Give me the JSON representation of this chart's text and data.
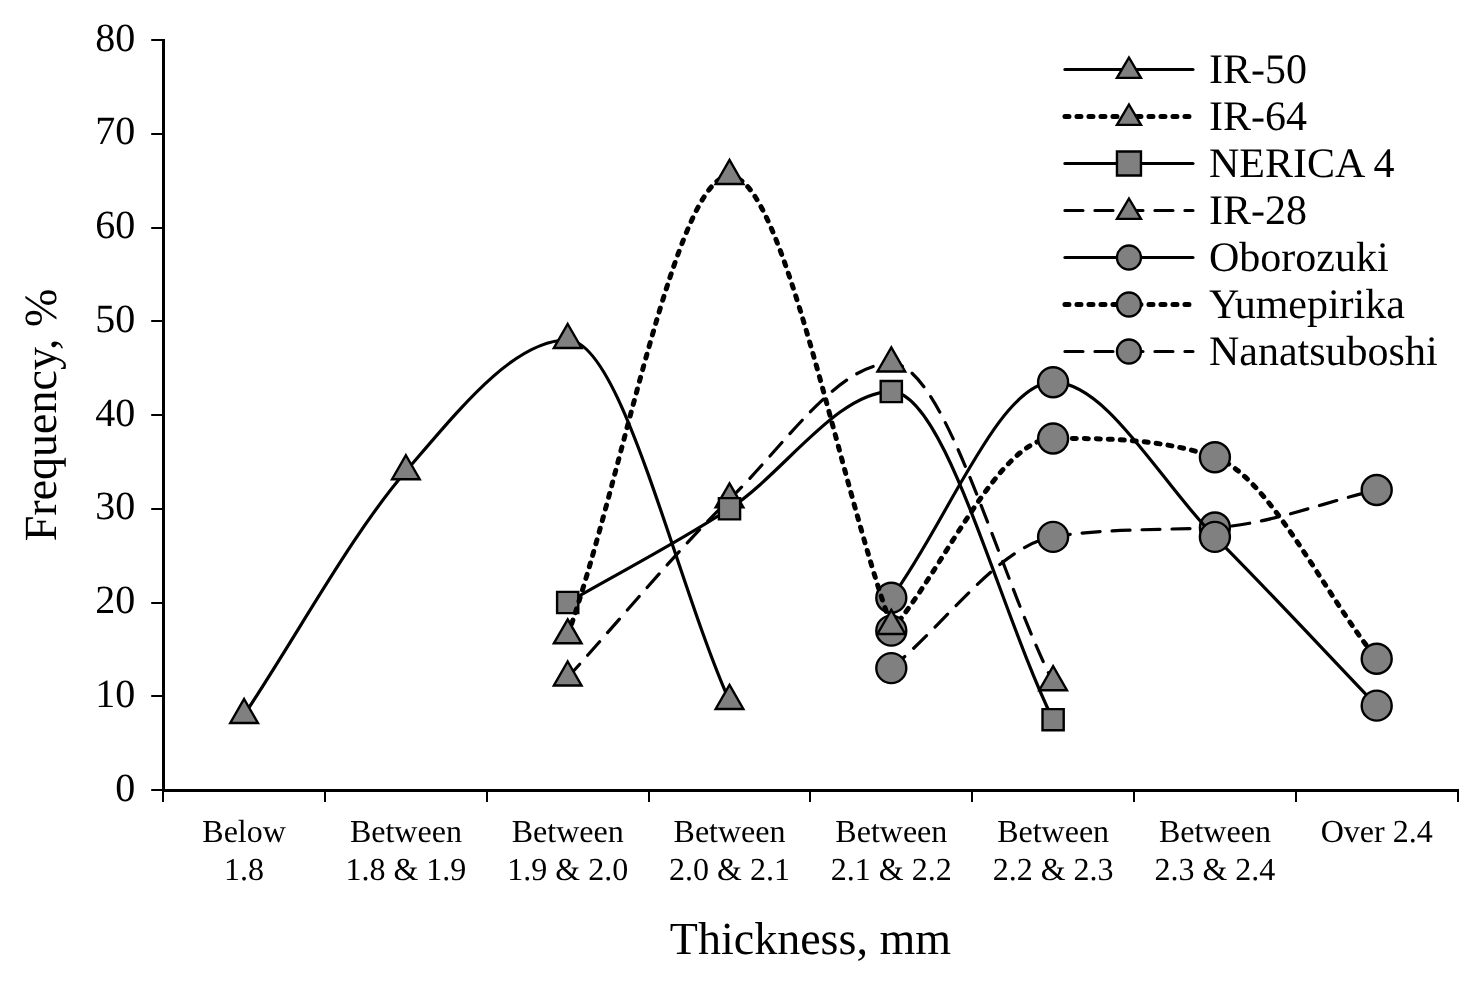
{
  "chart_data": {
    "type": "line",
    "xlabel": "Thickness, mm",
    "ylabel": "Frequency, %",
    "categories": [
      "Below\n1.8",
      "Between\n1.8 & 1.9",
      "Between\n1.9 & 2.0",
      "Between\n2.0 & 2.1",
      "Between\n2.1 & 2.2",
      "Between\n2.2 & 2.3",
      "Between\n2.3 & 2.4",
      "Over 2.4"
    ],
    "series": [
      {
        "name": "IR-50",
        "color": "#808080",
        "marker": "triangle",
        "line_style": "solid",
        "values": [
          8,
          34,
          48,
          9.5,
          null,
          null,
          null,
          null
        ]
      },
      {
        "name": "IR-64",
        "color": "#808080",
        "marker": "triangle",
        "line_style": "dotted",
        "values": [
          null,
          null,
          16.5,
          65.5,
          17.5,
          null,
          null,
          null
        ]
      },
      {
        "name": "NERICA 4",
        "color": "#808080",
        "marker": "square",
        "line_style": "solid",
        "values": [
          null,
          null,
          20,
          30,
          42.5,
          7.5,
          null,
          null
        ]
      },
      {
        "name": "IR-28",
        "color": "#808080",
        "marker": "triangle",
        "line_style": "dashed",
        "values": [
          null,
          null,
          12,
          31,
          45.5,
          11.5,
          null,
          null
        ]
      },
      {
        "name": "Oborozuki",
        "color": "#808080",
        "marker": "circle",
        "line_style": "solid",
        "values": [
          null,
          null,
          null,
          null,
          20.5,
          43.5,
          27,
          9
        ]
      },
      {
        "name": "Yumepirika",
        "color": "#808080",
        "marker": "circle",
        "line_style": "dotted",
        "values": [
          null,
          null,
          null,
          null,
          17,
          37.5,
          35.5,
          14
        ]
      },
      {
        "name": "Nanatsuboshi",
        "color": "#808080",
        "marker": "circle",
        "line_style": "dashed",
        "values": [
          null,
          null,
          null,
          null,
          13,
          27,
          28,
          32
        ]
      }
    ],
    "ylim": [
      0,
      80
    ],
    "yticks": [
      0,
      10,
      20,
      30,
      40,
      50,
      60,
      70,
      80
    ],
    "grid": false,
    "legend": "top right"
  }
}
